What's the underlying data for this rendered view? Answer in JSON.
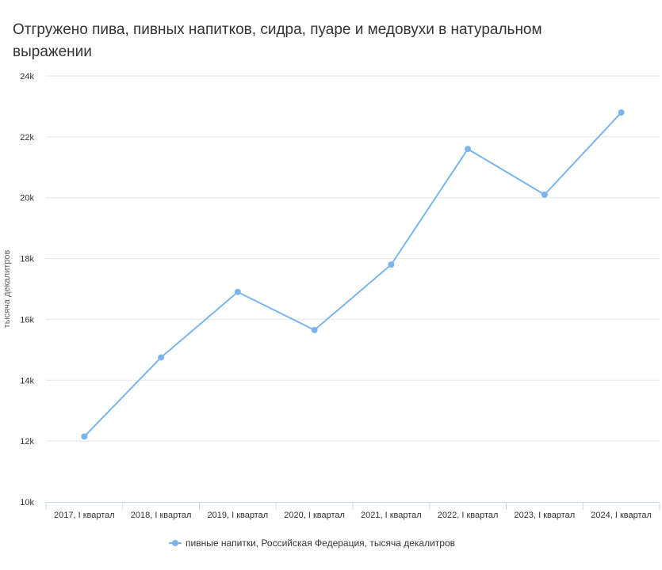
{
  "chart_data": {
    "type": "line",
    "title": "Отгружено пива, пивных напитков, сидра, пуаре и медовухи в натуральном выражении",
    "ylabel": "тысяча декалитров",
    "xlabel": "",
    "categories": [
      "2017, I квартал",
      "2018, I квартал",
      "2019, I квартал",
      "2020, I квартал",
      "2021, I квартал",
      "2022, I квартал",
      "2023, I квартал",
      "2024, I квартал"
    ],
    "series": [
      {
        "name": "пивные напитки, Российская Федерация, тысяча декалитров",
        "values": [
          12150,
          14750,
          16900,
          15650,
          17800,
          21600,
          20100,
          22800
        ],
        "color": "#7cb5ec"
      }
    ],
    "ylim": [
      10000,
      24000
    ],
    "yticks": [
      10000,
      12000,
      14000,
      16000,
      18000,
      20000,
      22000,
      24000
    ],
    "ytick_labels": [
      "10k",
      "12k",
      "14k",
      "16k",
      "18k",
      "20k",
      "22k",
      "24k"
    ],
    "grid": true,
    "legend_position": "bottom-center"
  }
}
